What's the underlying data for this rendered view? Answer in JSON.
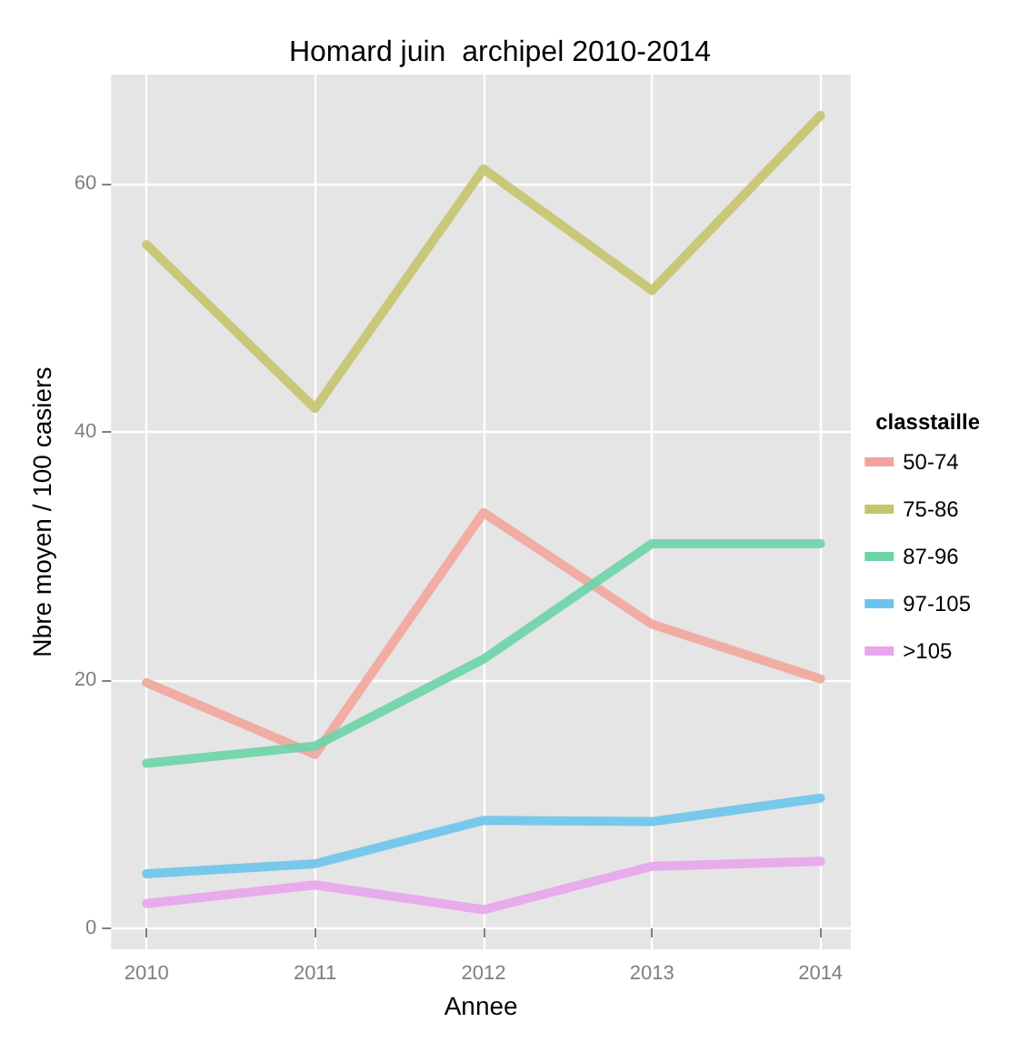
{
  "chart_data": {
    "type": "line",
    "title": "Homard juin  archipel 2010-2014",
    "xlabel": "Annee",
    "ylabel": "Nbre moyen / 100 casiers",
    "legend_title": "classtaille",
    "x": [
      2010,
      2011,
      2012,
      2013,
      2014
    ],
    "series": [
      {
        "name": "50-74",
        "color": "#f2a59c",
        "values": [
          19.8,
          14,
          33.5,
          24.5,
          20.1
        ]
      },
      {
        "name": "75-86",
        "color": "#c4c46c",
        "values": [
          55.1,
          41.9,
          61.2,
          51.4,
          65.5
        ]
      },
      {
        "name": "87-96",
        "color": "#6cd4a8",
        "values": [
          13.3,
          14.7,
          21.7,
          31,
          31
        ]
      },
      {
        "name": "97-105",
        "color": "#6cc4ec",
        "values": [
          4.4,
          5.2,
          8.7,
          8.6,
          10.5
        ]
      },
      {
        "name": ">105",
        "color": "#e8a4ec",
        "values": [
          2,
          3.5,
          1.5,
          5,
          5.4
        ]
      }
    ],
    "xlim": [
      2009.79,
      2014.18
    ],
    "xticks": [
      2010,
      2011,
      2012,
      2013,
      2014
    ],
    "ylim": [
      -1.7,
      68.8
    ],
    "yticks": [
      0,
      20,
      40,
      60
    ],
    "grid": true,
    "legend": "right",
    "marker": "none",
    "line_style": "solid"
  }
}
